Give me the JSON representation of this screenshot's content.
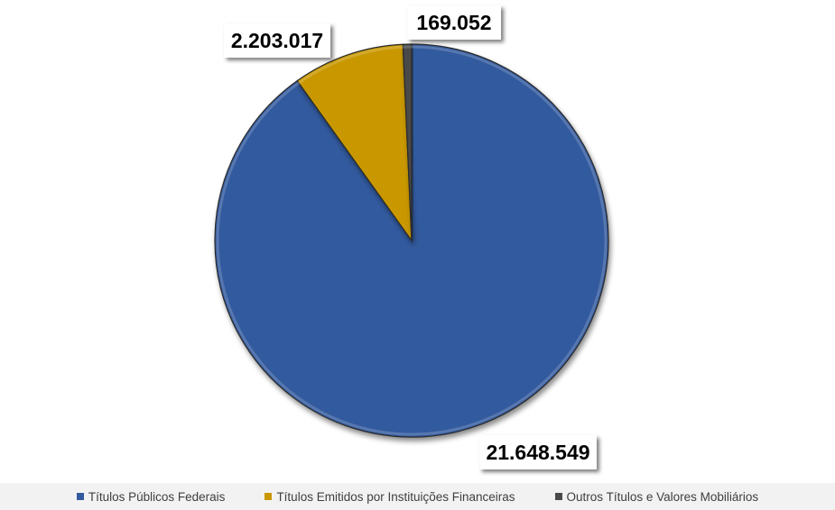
{
  "chart_data": {
    "type": "pie",
    "categories": [
      "Títulos Públicos Federais",
      "Títulos Emitidos por Instituições Financeiras",
      "Outros Títulos e Valores Mobiliários"
    ],
    "values": [
      21648549,
      2203017,
      169052
    ],
    "data_labels": [
      "21.648.549",
      "2.203.017",
      "169.052"
    ],
    "colors": [
      "#335a9e",
      "#c99800",
      "#4a4a4a"
    ],
    "start_angle": "12 o'clock",
    "direction": "clockwise",
    "legend_position": "bottom",
    "title": ""
  },
  "legend": {
    "items": [
      {
        "label": "Títulos Públicos Federais",
        "color": "#335a9e"
      },
      {
        "label": "Títulos Emitidos por Instituições Financeiras",
        "color": "#c99800"
      },
      {
        "label": "Outros Títulos e Valores Mobiliários",
        "color": "#4a4a4a"
      }
    ]
  }
}
